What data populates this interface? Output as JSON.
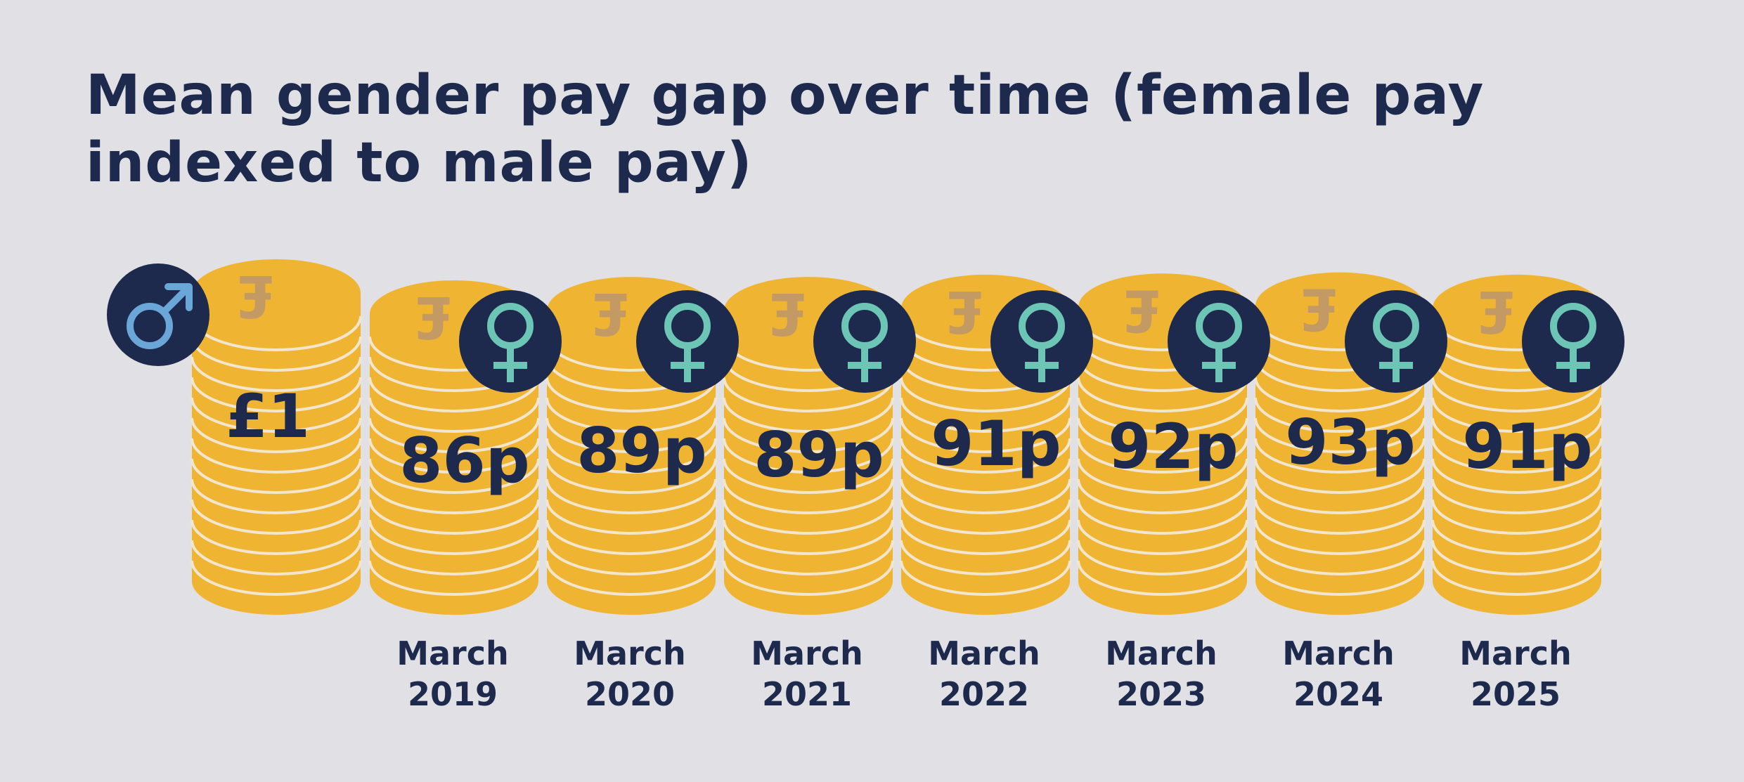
{
  "chart_data": {
    "type": "bar",
    "title": "Mean gender pay gap over time (female pay indexed to male pay)",
    "baseline": {
      "label": "£1",
      "value": 100,
      "icon": "male-symbol-icon"
    },
    "categories": [
      "March 2019",
      "March 2020",
      "March 2021",
      "March 2022",
      "March 2023",
      "March 2024",
      "March 2025"
    ],
    "series": [
      {
        "values": [
          86,
          89,
          89,
          91,
          92,
          93,
          91
        ],
        "labels": [
          "86p",
          "89p",
          "89p",
          "91p",
          "92p",
          "93p",
          "91p"
        ],
        "icon": "female-symbol-icon"
      }
    ],
    "unit": "p"
  },
  "colors": {
    "background": "#e1e0e5",
    "coin": "#f0b433",
    "coin_line": "#f3e6cf",
    "pound_mark": "#c39a63",
    "text": "#1d2a4d",
    "badge": "#1d2a4d",
    "male_symbol": "#6aa6d8",
    "female_symbol": "#6dc6b5"
  }
}
